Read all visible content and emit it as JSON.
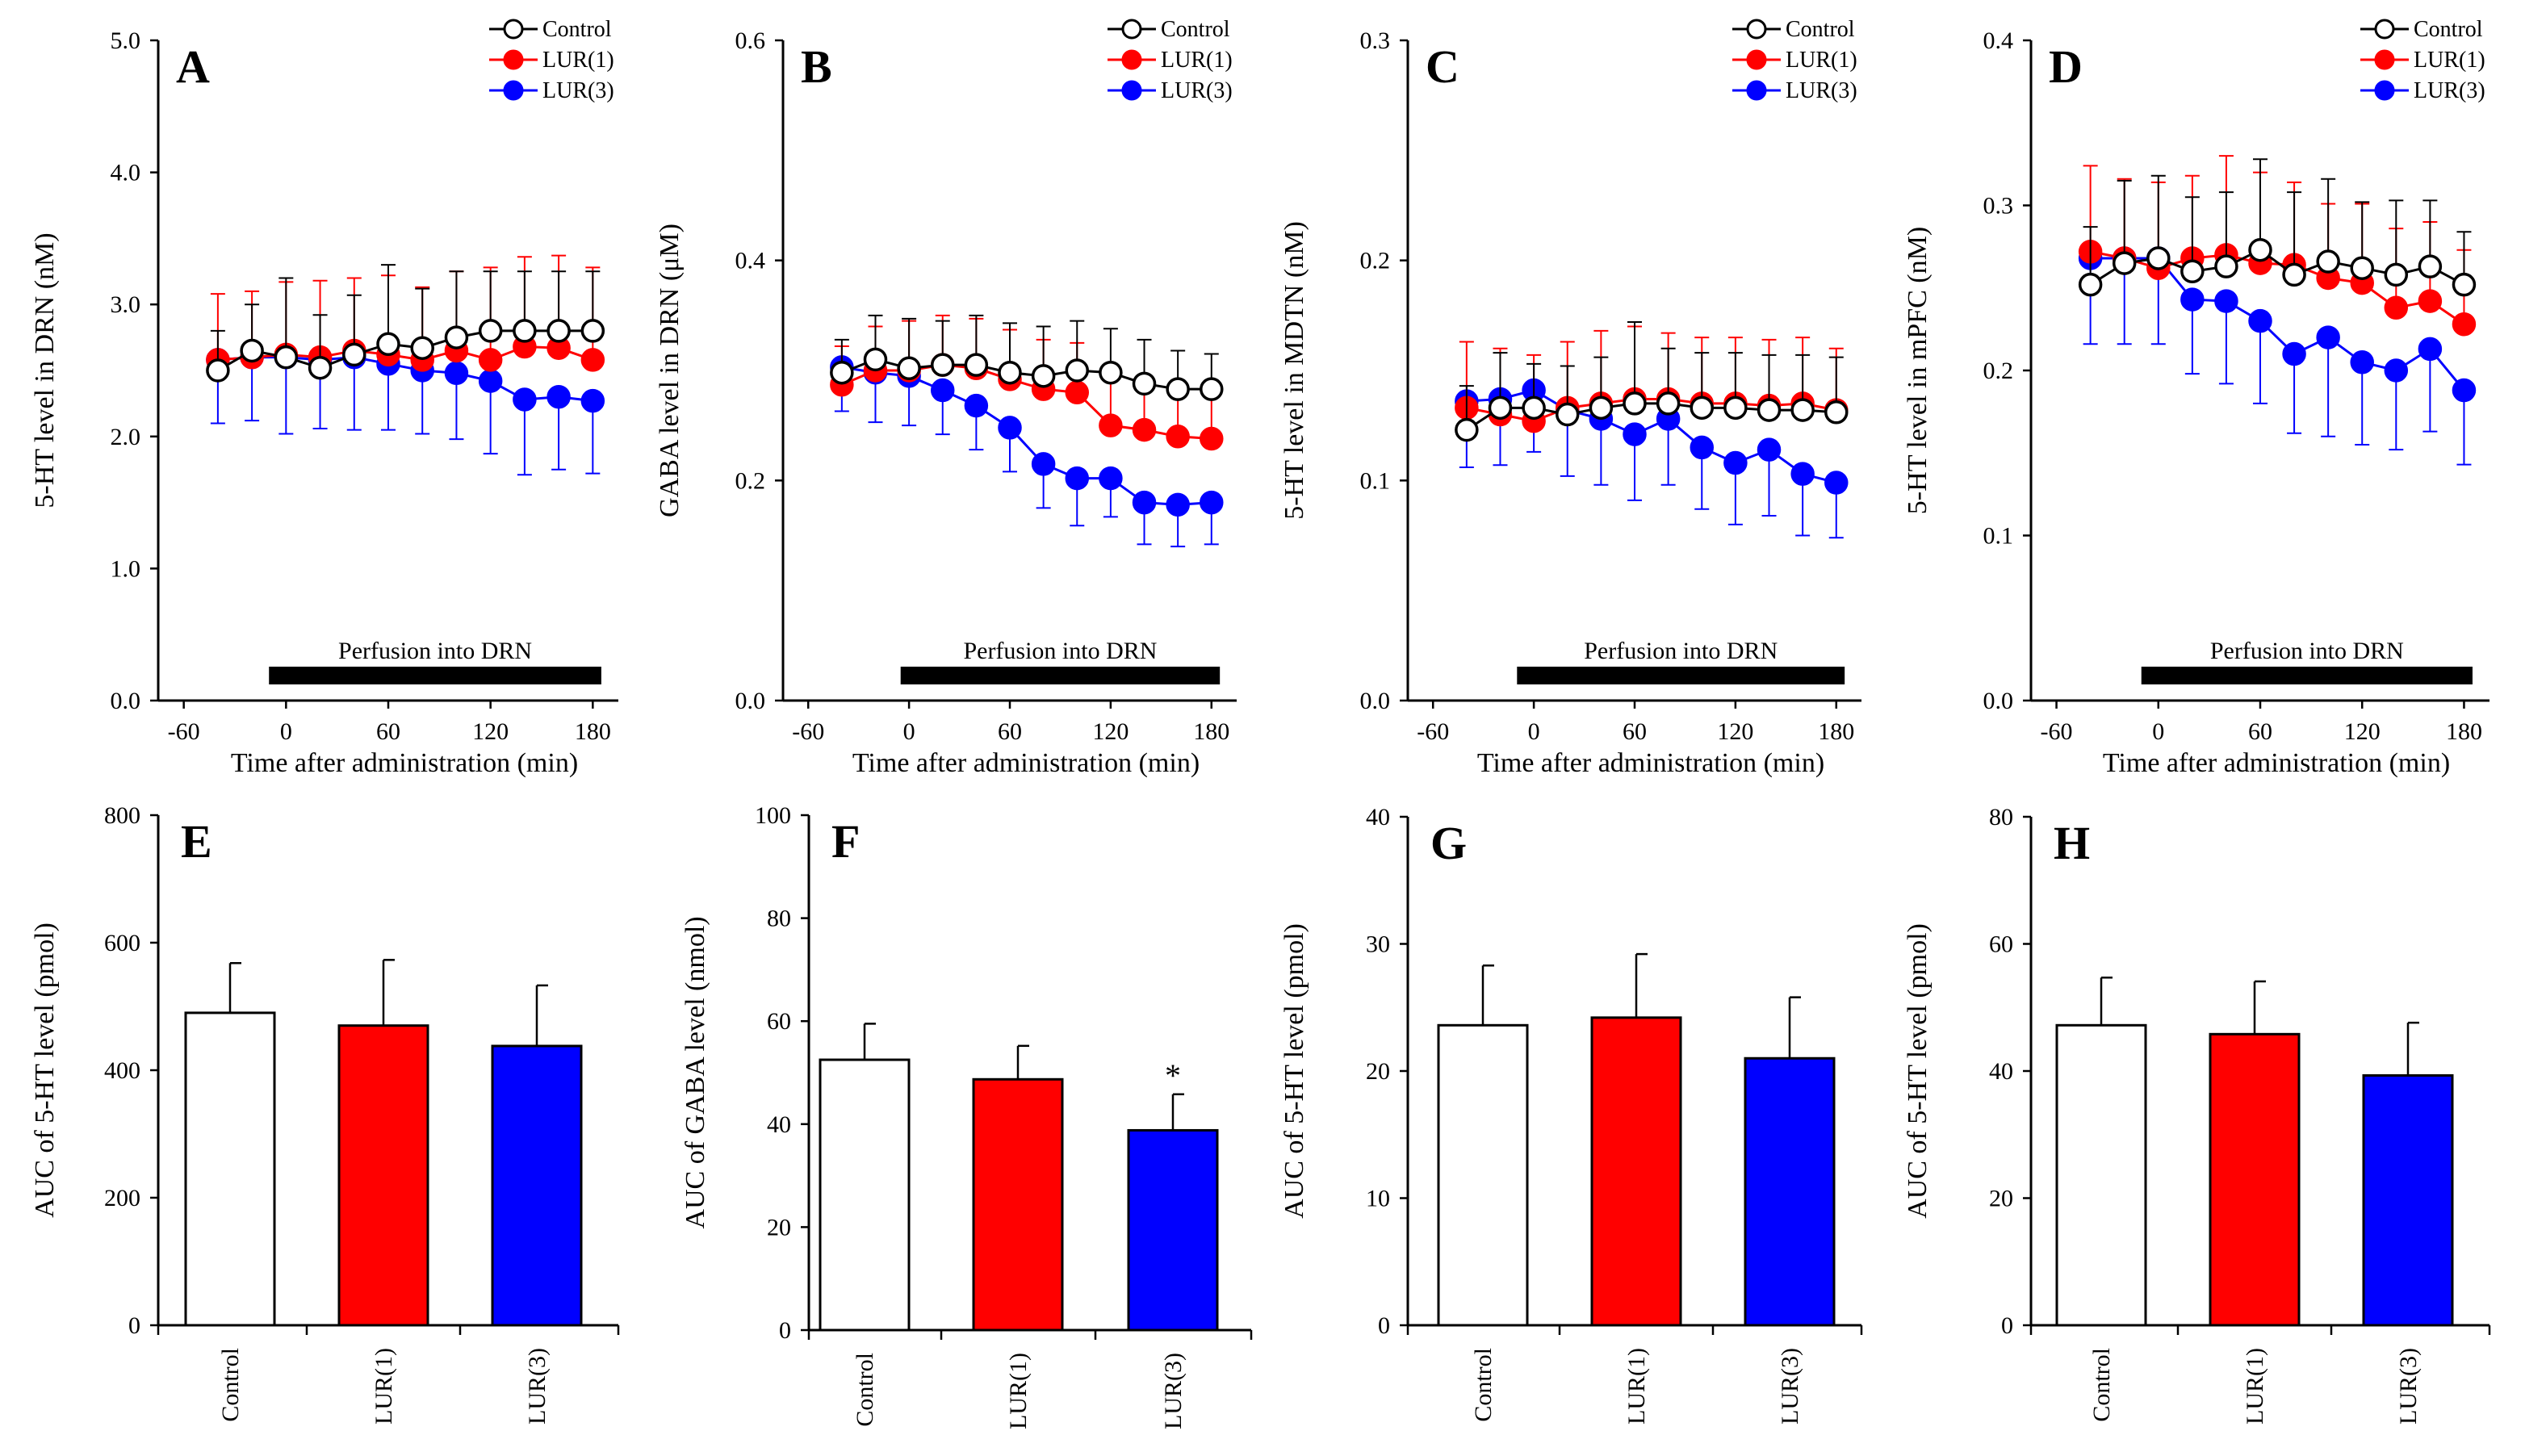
{
  "legend": [
    "Control",
    "LUR(1)",
    "LUR(3)"
  ],
  "colors": {
    "control": "#ffffff",
    "control_stroke": "#000000",
    "lur1": "#ff0000",
    "lur3": "#0000ff"
  },
  "perfusion_label": "Perfusion into DRN",
  "chart_data": [
    {
      "type": "line",
      "panel": "A",
      "xlabel": "Time after administration (min)",
      "ylabel": "5-HT level in DRN (nM)",
      "xlim": [
        -75,
        195
      ],
      "ylim": [
        0,
        5
      ],
      "yticks": [
        "0.0",
        "1.0",
        "2.0",
        "3.0",
        "4.0",
        "5.0"
      ],
      "xticks": [
        -60,
        0,
        60,
        120,
        180
      ],
      "perfusion": [
        -10,
        185
      ],
      "x": [
        -40,
        -20,
        0,
        20,
        40,
        60,
        80,
        100,
        120,
        140,
        160,
        180
      ],
      "series": [
        {
          "name": "Control",
          "values": [
            2.5,
            2.65,
            2.6,
            2.52,
            2.62,
            2.7,
            2.67,
            2.75,
            2.8,
            2.8,
            2.8,
            2.8
          ],
          "err": [
            0.3,
            0.35,
            0.6,
            0.4,
            0.45,
            0.6,
            0.45,
            0.5,
            0.45,
            0.45,
            0.45,
            0.45
          ],
          "err_dir": "up"
        },
        {
          "name": "LUR(1)",
          "values": [
            2.58,
            2.6,
            2.62,
            2.6,
            2.65,
            2.62,
            2.58,
            2.65,
            2.58,
            2.68,
            2.67,
            2.58
          ],
          "err": [
            0.5,
            0.5,
            0.55,
            0.58,
            0.55,
            0.6,
            0.55,
            0.6,
            0.7,
            0.68,
            0.7,
            0.7
          ],
          "err_dir": "up"
        },
        {
          "name": "LUR(3)",
          "values": [
            2.58,
            2.6,
            2.6,
            2.58,
            2.6,
            2.55,
            2.5,
            2.48,
            2.42,
            2.28,
            2.3,
            2.27
          ],
          "err": [
            0.48,
            0.48,
            0.58,
            0.52,
            0.55,
            0.5,
            0.48,
            0.5,
            0.55,
            0.57,
            0.55,
            0.55
          ],
          "err_dir": "down"
        }
      ]
    },
    {
      "type": "line",
      "panel": "B",
      "xlabel": "Time after administration (min)",
      "ylabel": "GABA level in DRN (μM)",
      "xlim": [
        -75,
        195
      ],
      "ylim": [
        0,
        0.6
      ],
      "yticks": [
        "0.0",
        "0.2",
        "0.4",
        "0.6"
      ],
      "xticks": [
        -60,
        0,
        60,
        120,
        180
      ],
      "perfusion": [
        -5,
        185
      ],
      "x": [
        -40,
        -20,
        0,
        20,
        40,
        60,
        80,
        100,
        120,
        140,
        160,
        180
      ],
      "series": [
        {
          "name": "Control",
          "values": [
            0.298,
            0.31,
            0.302,
            0.305,
            0.305,
            0.298,
            0.295,
            0.3,
            0.298,
            0.288,
            0.283,
            0.283
          ],
          "err": [
            0.03,
            0.04,
            0.045,
            0.04,
            0.045,
            0.045,
            0.045,
            0.045,
            0.04,
            0.04,
            0.035,
            0.032
          ],
          "err_dir": "up"
        },
        {
          "name": "LUR(1)",
          "values": [
            0.287,
            0.3,
            0.3,
            0.305,
            0.302,
            0.292,
            0.283,
            0.28,
            0.25,
            0.246,
            0.24,
            0.238
          ],
          "err": [
            0.035,
            0.04,
            0.045,
            0.045,
            0.045,
            0.045,
            0.045,
            0.045,
            0.045,
            0.04,
            0.04,
            0.04
          ],
          "err_dir": "up"
        },
        {
          "name": "LUR(3)",
          "values": [
            0.303,
            0.298,
            0.295,
            0.282,
            0.268,
            0.248,
            0.215,
            0.202,
            0.202,
            0.18,
            0.178,
            0.18
          ],
          "err": [
            0.04,
            0.045,
            0.045,
            0.04,
            0.04,
            0.04,
            0.04,
            0.043,
            0.035,
            0.038,
            0.038,
            0.038
          ],
          "err_dir": "down"
        }
      ]
    },
    {
      "type": "line",
      "panel": "C",
      "xlabel": "Time after administration (min)",
      "ylabel": "5-HT level in MDTN (nM)",
      "xlim": [
        -75,
        195
      ],
      "ylim": [
        0,
        0.3
      ],
      "yticks": [
        "0.0",
        "0.1",
        "0.2",
        "0.3"
      ],
      "xticks": [
        -60,
        0,
        60,
        120,
        180
      ],
      "perfusion": [
        -10,
        185
      ],
      "x": [
        -40,
        -20,
        0,
        20,
        40,
        60,
        80,
        100,
        120,
        140,
        160,
        180
      ],
      "series": [
        {
          "name": "Control",
          "values": [
            0.123,
            0.133,
            0.133,
            0.13,
            0.133,
            0.135,
            0.135,
            0.133,
            0.133,
            0.132,
            0.132,
            0.131
          ],
          "err": [
            0.02,
            0.025,
            0.02,
            0.022,
            0.023,
            0.037,
            0.025,
            0.025,
            0.025,
            0.025,
            0.025,
            0.025
          ],
          "err_dir": "up"
        },
        {
          "name": "LUR(1)",
          "values": [
            0.133,
            0.13,
            0.127,
            0.133,
            0.135,
            0.137,
            0.137,
            0.135,
            0.135,
            0.134,
            0.135,
            0.132
          ],
          "err": [
            0.03,
            0.03,
            0.03,
            0.03,
            0.033,
            0.033,
            0.03,
            0.03,
            0.03,
            0.03,
            0.03,
            0.028
          ],
          "err_dir": "up"
        },
        {
          "name": "LUR(3)",
          "values": [
            0.136,
            0.137,
            0.141,
            0.132,
            0.128,
            0.121,
            0.128,
            0.115,
            0.108,
            0.114,
            0.103,
            0.099
          ],
          "err": [
            0.03,
            0.03,
            0.028,
            0.03,
            0.03,
            0.03,
            0.03,
            0.028,
            0.028,
            0.03,
            0.028,
            0.025
          ],
          "err_dir": "down"
        }
      ]
    },
    {
      "type": "line",
      "panel": "D",
      "xlabel": "Time after administration (min)",
      "ylabel": "5-HT level in mPFC (nM)",
      "xlim": [
        -75,
        195
      ],
      "ylim": [
        0,
        0.4
      ],
      "yticks": [
        "0.0",
        "0.1",
        "0.2",
        "0.3",
        "0.4"
      ],
      "xticks": [
        -60,
        0,
        60,
        120,
        180
      ],
      "perfusion": [
        -10,
        185
      ],
      "x": [
        -40,
        -20,
        0,
        20,
        40,
        60,
        80,
        100,
        120,
        140,
        160,
        180
      ],
      "series": [
        {
          "name": "Control",
          "values": [
            0.252,
            0.265,
            0.268,
            0.26,
            0.263,
            0.273,
            0.258,
            0.266,
            0.262,
            0.258,
            0.263,
            0.252
          ],
          "err": [
            0.035,
            0.05,
            0.05,
            0.045,
            0.045,
            0.055,
            0.05,
            0.05,
            0.04,
            0.045,
            0.04,
            0.032
          ],
          "err_dir": "up"
        },
        {
          "name": "LUR(1)",
          "values": [
            0.272,
            0.268,
            0.262,
            0.268,
            0.27,
            0.265,
            0.264,
            0.256,
            0.253,
            0.238,
            0.242,
            0.228
          ],
          "err": [
            0.052,
            0.048,
            0.052,
            0.05,
            0.06,
            0.055,
            0.05,
            0.045,
            0.048,
            0.048,
            0.048,
            0.045
          ],
          "err_dir": "up"
        },
        {
          "name": "LUR(3)",
          "values": [
            0.268,
            0.268,
            0.268,
            0.243,
            0.242,
            0.23,
            0.21,
            0.22,
            0.205,
            0.2,
            0.213,
            0.188
          ],
          "err": [
            0.052,
            0.052,
            0.052,
            0.045,
            0.05,
            0.05,
            0.048,
            0.06,
            0.05,
            0.048,
            0.05,
            0.045
          ],
          "err_dir": "down"
        }
      ]
    },
    {
      "type": "bar",
      "panel": "E",
      "ylabel": "AUC of 5-HT level  (pmol)",
      "categories": [
        "Control",
        "LUR(1)",
        "LUR(3)"
      ],
      "values": [
        490,
        470,
        438
      ],
      "err": [
        78,
        103,
        95
      ],
      "ylim": [
        0,
        800
      ],
      "yticks": [
        "0",
        "200",
        "400",
        "600",
        "800"
      ],
      "sig": [
        "",
        "",
        ""
      ]
    },
    {
      "type": "bar",
      "panel": "F",
      "ylabel": "AUC of GABA level  (nmol)",
      "categories": [
        "Control",
        "LUR(1)",
        "LUR(3)"
      ],
      "values": [
        52.5,
        48.7,
        38.8
      ],
      "err": [
        7,
        6.5,
        7
      ],
      "ylim": [
        0,
        100
      ],
      "yticks": [
        "0",
        "20",
        "40",
        "60",
        "80",
        "100"
      ],
      "sig": [
        "",
        "",
        "*"
      ]
    },
    {
      "type": "bar",
      "panel": "G",
      "ylabel": "AUC of 5-HT level  (pmol)",
      "categories": [
        "Control",
        "LUR(1)",
        "LUR(3)"
      ],
      "values": [
        23.6,
        24.2,
        21.0
      ],
      "err": [
        4.7,
        5.0,
        4.8
      ],
      "ylim": [
        0,
        40
      ],
      "yticks": [
        "0",
        "10",
        "20",
        "30",
        "40"
      ],
      "sig": [
        "",
        "",
        ""
      ]
    },
    {
      "type": "bar",
      "panel": "H",
      "ylabel": "AUC of 5-HT level  (pmol)",
      "categories": [
        "Control",
        "LUR(1)",
        "LUR(3)"
      ],
      "values": [
        47.2,
        45.8,
        39.3
      ],
      "err": [
        7.5,
        8.3,
        8.3
      ],
      "ylim": [
        0,
        80
      ],
      "yticks": [
        "0",
        "20",
        "40",
        "60",
        "80"
      ],
      "sig": [
        "",
        "",
        ""
      ]
    }
  ]
}
